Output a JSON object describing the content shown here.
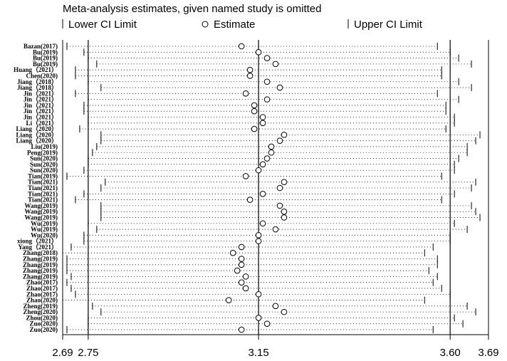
{
  "chart_data": {
    "type": "influence-plot",
    "title": "Meta-analysis estimates, given named study is omitted",
    "legend": [
      {
        "key": "lower",
        "label": "Lower CI Limit",
        "symbol": "|"
      },
      {
        "key": "estimate",
        "label": "Estimate",
        "symbol": "o"
      },
      {
        "key": "upper",
        "label": "Upper CI Limit",
        "symbol": "|"
      }
    ],
    "xlim": [
      2.69,
      3.69
    ],
    "ticks": [
      "2.69",
      "2.75",
      "3.15",
      "3.60",
      "3.69"
    ],
    "ref_lines": [
      2.75,
      3.15,
      3.6
    ],
    "studies": [
      {
        "name": "Bazan(2017)",
        "est": 3.11,
        "lo": 2.7,
        "hi": 3.57
      },
      {
        "name": "Bu(2019)",
        "est": 3.15,
        "lo": 2.74,
        "hi": 3.6
      },
      {
        "name": "Bu(2019)",
        "est": 3.17,
        "lo": 2.75,
        "hi": 3.62
      },
      {
        "name": "Bu(2019)",
        "est": 3.19,
        "lo": 2.77,
        "hi": 3.65
      },
      {
        "name": "Huang（2021）",
        "est": 3.13,
        "lo": 2.72,
        "hi": 3.58
      },
      {
        "name": "Chen(2020)",
        "est": 3.13,
        "lo": 2.72,
        "hi": 3.58
      },
      {
        "name": "Jiang（2018）",
        "est": 3.17,
        "lo": 2.75,
        "hi": 3.62
      },
      {
        "name": "Jiang（2018）",
        "est": 3.2,
        "lo": 2.78,
        "hi": 3.65
      },
      {
        "name": "Jin（2021）",
        "est": 3.12,
        "lo": 2.72,
        "hi": 3.57
      },
      {
        "name": "Jin（2021）",
        "est": 3.17,
        "lo": 2.75,
        "hi": 3.62
      },
      {
        "name": "Jin（2021）",
        "est": 3.14,
        "lo": 2.74,
        "hi": 3.59
      },
      {
        "name": "Jin（2021）",
        "est": 3.14,
        "lo": 2.74,
        "hi": 3.59
      },
      {
        "name": "Jin（2021）",
        "est": 3.16,
        "lo": 2.75,
        "hi": 3.61
      },
      {
        "name": "Li（2021）",
        "est": 3.16,
        "lo": 2.75,
        "hi": 3.61
      },
      {
        "name": "Liang（2020）",
        "est": 3.14,
        "lo": 2.73,
        "hi": 3.59
      },
      {
        "name": "Liang（2020）",
        "est": 3.21,
        "lo": 2.78,
        "hi": 3.67
      },
      {
        "name": "Liang（2020）",
        "est": 3.2,
        "lo": 2.78,
        "hi": 3.66
      },
      {
        "name": "Liu(2019)",
        "est": 3.18,
        "lo": 2.77,
        "hi": 3.64
      },
      {
        "name": "Peng(2019)",
        "est": 3.18,
        "lo": 2.76,
        "hi": 3.64
      },
      {
        "name": "Sun(2020)",
        "est": 3.17,
        "lo": 2.75,
        "hi": 3.62
      },
      {
        "name": "Sun(2020)",
        "est": 3.16,
        "lo": 2.75,
        "hi": 3.61
      },
      {
        "name": "Sun(2020)",
        "est": 3.15,
        "lo": 2.74,
        "hi": 3.61
      },
      {
        "name": "Tian(2019)",
        "est": 3.12,
        "lo": 2.7,
        "hi": 3.58
      },
      {
        "name": "Tian(2021)",
        "est": 3.21,
        "lo": 2.79,
        "hi": 3.66
      },
      {
        "name": "Tian(2021)",
        "est": 3.2,
        "lo": 2.78,
        "hi": 3.65
      },
      {
        "name": "Tian(2021)",
        "est": 3.16,
        "lo": 2.74,
        "hi": 3.61
      },
      {
        "name": "Tian(2021)",
        "est": 3.13,
        "lo": 2.72,
        "hi": 3.58
      },
      {
        "name": "Wang(2019)",
        "est": 3.2,
        "lo": 2.78,
        "hi": 3.65
      },
      {
        "name": "Wang(2019)",
        "est": 3.21,
        "lo": 2.78,
        "hi": 3.66
      },
      {
        "name": "Wang(2019)",
        "est": 3.21,
        "lo": 2.78,
        "hi": 3.67
      },
      {
        "name": "Wu(2019)",
        "est": 3.16,
        "lo": 2.75,
        "hi": 3.61
      },
      {
        "name": "Wu(2019)",
        "est": 3.19,
        "lo": 2.77,
        "hi": 3.64
      },
      {
        "name": "Wu(2020)",
        "est": 3.15,
        "lo": 2.74,
        "hi": 3.6
      },
      {
        "name": "xiong（2021）",
        "est": 3.15,
        "lo": 2.74,
        "hi": 3.6
      },
      {
        "name": "Yang（2021）",
        "est": 3.11,
        "lo": 2.71,
        "hi": 3.56
      },
      {
        "name": "Zhang(2018)",
        "est": 3.09,
        "lo": 2.69,
        "hi": 3.54
      },
      {
        "name": "Zhang(2019)",
        "est": 3.11,
        "lo": 2.7,
        "hi": 3.57
      },
      {
        "name": "Zhang(2019)",
        "est": 3.11,
        "lo": 2.7,
        "hi": 3.57
      },
      {
        "name": "Zhang(2019)",
        "est": 3.1,
        "lo": 2.7,
        "hi": 3.55
      },
      {
        "name": "Zhang(2019)",
        "est": 3.12,
        "lo": 2.71,
        "hi": 3.57
      },
      {
        "name": "Zhao(2017)",
        "est": 3.11,
        "lo": 2.7,
        "hi": 3.56
      },
      {
        "name": "Zhao(2017)",
        "est": 3.12,
        "lo": 2.71,
        "hi": 3.58
      },
      {
        "name": "Zhao(2017)",
        "est": 3.15,
        "lo": 2.72,
        "hi": 3.6
      },
      {
        "name": "Zhao(2020)",
        "est": 3.08,
        "lo": 2.69,
        "hi": 3.54
      },
      {
        "name": "Zheng(2019)",
        "est": 3.19,
        "lo": 2.76,
        "hi": 3.64
      },
      {
        "name": "Zheng(2020)",
        "est": 3.21,
        "lo": 2.78,
        "hi": 3.66
      },
      {
        "name": "Zhou(2020)",
        "est": 3.15,
        "lo": 2.75,
        "hi": 3.61
      },
      {
        "name": "Zuo(2020)",
        "est": 3.17,
        "lo": 2.75,
        "hi": 3.63
      },
      {
        "name": "Zuo(2020)",
        "est": 3.11,
        "lo": 2.7,
        "hi": 3.56
      }
    ]
  }
}
